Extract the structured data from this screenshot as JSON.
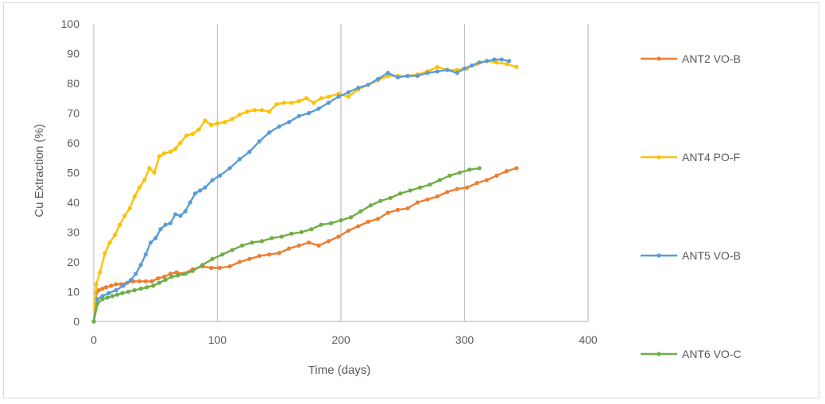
{
  "chart_data": {
    "type": "line",
    "xlabel": "Time (days)",
    "ylabel": "Cu Extraction (%)",
    "xlim": [
      0,
      400
    ],
    "ylim": [
      0,
      100
    ],
    "xticks": [
      0,
      100,
      200,
      300,
      400
    ],
    "yticks": [
      0,
      10,
      20,
      30,
      40,
      50,
      60,
      70,
      80,
      90,
      100
    ],
    "grid": "vertical",
    "legend_position": "right",
    "series": [
      {
        "name": "ANT2 VO-B",
        "color": "#ED7D31",
        "x": [
          0,
          2,
          4,
          7,
          10,
          14,
          18,
          22,
          27,
          32,
          37,
          42,
          47,
          52,
          57,
          62,
          67,
          72,
          80,
          88,
          95,
          102,
          110,
          118,
          126,
          134,
          142,
          150,
          158,
          166,
          174,
          182,
          190,
          198,
          206,
          214,
          222,
          230,
          238,
          246,
          254,
          262,
          270,
          278,
          286,
          294,
          302,
          310,
          318,
          326,
          334,
          342
        ],
        "y": [
          0,
          9.5,
          10.5,
          11,
          11.5,
          12,
          12.5,
          12.5,
          13,
          13.5,
          13.5,
          13.5,
          13.5,
          14.5,
          15,
          16,
          16.5,
          16,
          17.5,
          18.5,
          18,
          18,
          18.5,
          20,
          21,
          22,
          22.5,
          23,
          24.5,
          25.5,
          26.5,
          25.5,
          27,
          28.5,
          30.5,
          32,
          33.5,
          34.5,
          36.5,
          37.5,
          38,
          40,
          41,
          42,
          43.5,
          44.5,
          45,
          46.5,
          47.5,
          49,
          50.5,
          51.5
        ]
      },
      {
        "name": "ANT4 PO-F",
        "color": "#FFC000",
        "x": [
          0,
          2,
          5,
          9,
          13,
          17,
          21,
          25,
          29,
          33,
          37,
          41,
          45,
          49,
          53,
          57,
          62,
          66,
          70,
          75,
          80,
          85,
          90,
          95,
          100,
          106,
          112,
          118,
          124,
          130,
          136,
          142,
          148,
          154,
          160,
          166,
          172,
          178,
          184,
          190,
          198,
          206,
          214,
          222,
          230,
          238,
          246,
          254,
          262,
          270,
          278,
          286,
          294,
          302,
          310,
          318,
          326,
          334,
          342
        ],
        "y": [
          0,
          12.5,
          16.5,
          23,
          26.5,
          29,
          32.5,
          35.5,
          38,
          42,
          45,
          47.5,
          51.5,
          50,
          55.5,
          56.5,
          57,
          58,
          60,
          62.5,
          63,
          64.5,
          67.5,
          66,
          66.5,
          67,
          68,
          69.5,
          70.5,
          71,
          71,
          70.5,
          73,
          73.5,
          73.5,
          74,
          75,
          73.5,
          75,
          75.5,
          76.5,
          75.5,
          78,
          79.5,
          81,
          82.5,
          82.5,
          82.5,
          83,
          84,
          85.5,
          84.5,
          84.5,
          85,
          86.5,
          87.5,
          87,
          86.5,
          85.5
        ]
      },
      {
        "name": "ANT5 VO-B",
        "color": "#5B9BD5",
        "x": [
          0,
          3,
          7,
          12,
          18,
          24,
          30,
          34,
          38,
          42,
          46,
          50,
          54,
          58,
          62,
          66,
          70,
          74,
          78,
          82,
          86,
          90,
          96,
          102,
          110,
          118,
          126,
          134,
          142,
          150,
          158,
          166,
          174,
          182,
          190,
          198,
          206,
          214,
          222,
          230,
          238,
          246,
          254,
          262,
          270,
          278,
          286,
          294,
          300,
          306,
          312,
          318,
          324,
          330,
          336
        ],
        "y": [
          0,
          7.5,
          8.5,
          9.5,
          10.5,
          12,
          14,
          16,
          19,
          22.5,
          26.5,
          28,
          31,
          32.5,
          33,
          36,
          35.5,
          37,
          40,
          43,
          44,
          45,
          47.5,
          49,
          51.5,
          54.5,
          57,
          60.5,
          63.5,
          65.5,
          67,
          69,
          70,
          71.5,
          73.5,
          75.5,
          77,
          78.5,
          79.5,
          81.5,
          83.5,
          82,
          82.5,
          82.5,
          83.5,
          84,
          84.5,
          83.5,
          85,
          86,
          87,
          87.5,
          88,
          88,
          87.5
        ]
      },
      {
        "name": "ANT6 VO-C",
        "color": "#70AD47",
        "x": [
          0,
          3,
          7,
          11,
          15,
          19,
          23,
          28,
          33,
          38,
          43,
          48,
          53,
          58,
          63,
          68,
          74,
          80,
          88,
          96,
          104,
          112,
          120,
          128,
          136,
          144,
          152,
          160,
          168,
          176,
          184,
          192,
          200,
          208,
          216,
          224,
          232,
          240,
          248,
          256,
          264,
          272,
          280,
          288,
          296,
          304,
          312
        ],
        "y": [
          0,
          6,
          7.5,
          8,
          8.5,
          9,
          9.5,
          10,
          10.5,
          11,
          11.5,
          12,
          13,
          14,
          15,
          15.5,
          16,
          17,
          19,
          21,
          22.5,
          24,
          25.5,
          26.5,
          27,
          28,
          28.5,
          29.5,
          30,
          31,
          32.5,
          33,
          34,
          35,
          37,
          39,
          40.5,
          41.5,
          43,
          44,
          45,
          46,
          47.5,
          49,
          50,
          51,
          51.5
        ]
      }
    ]
  }
}
